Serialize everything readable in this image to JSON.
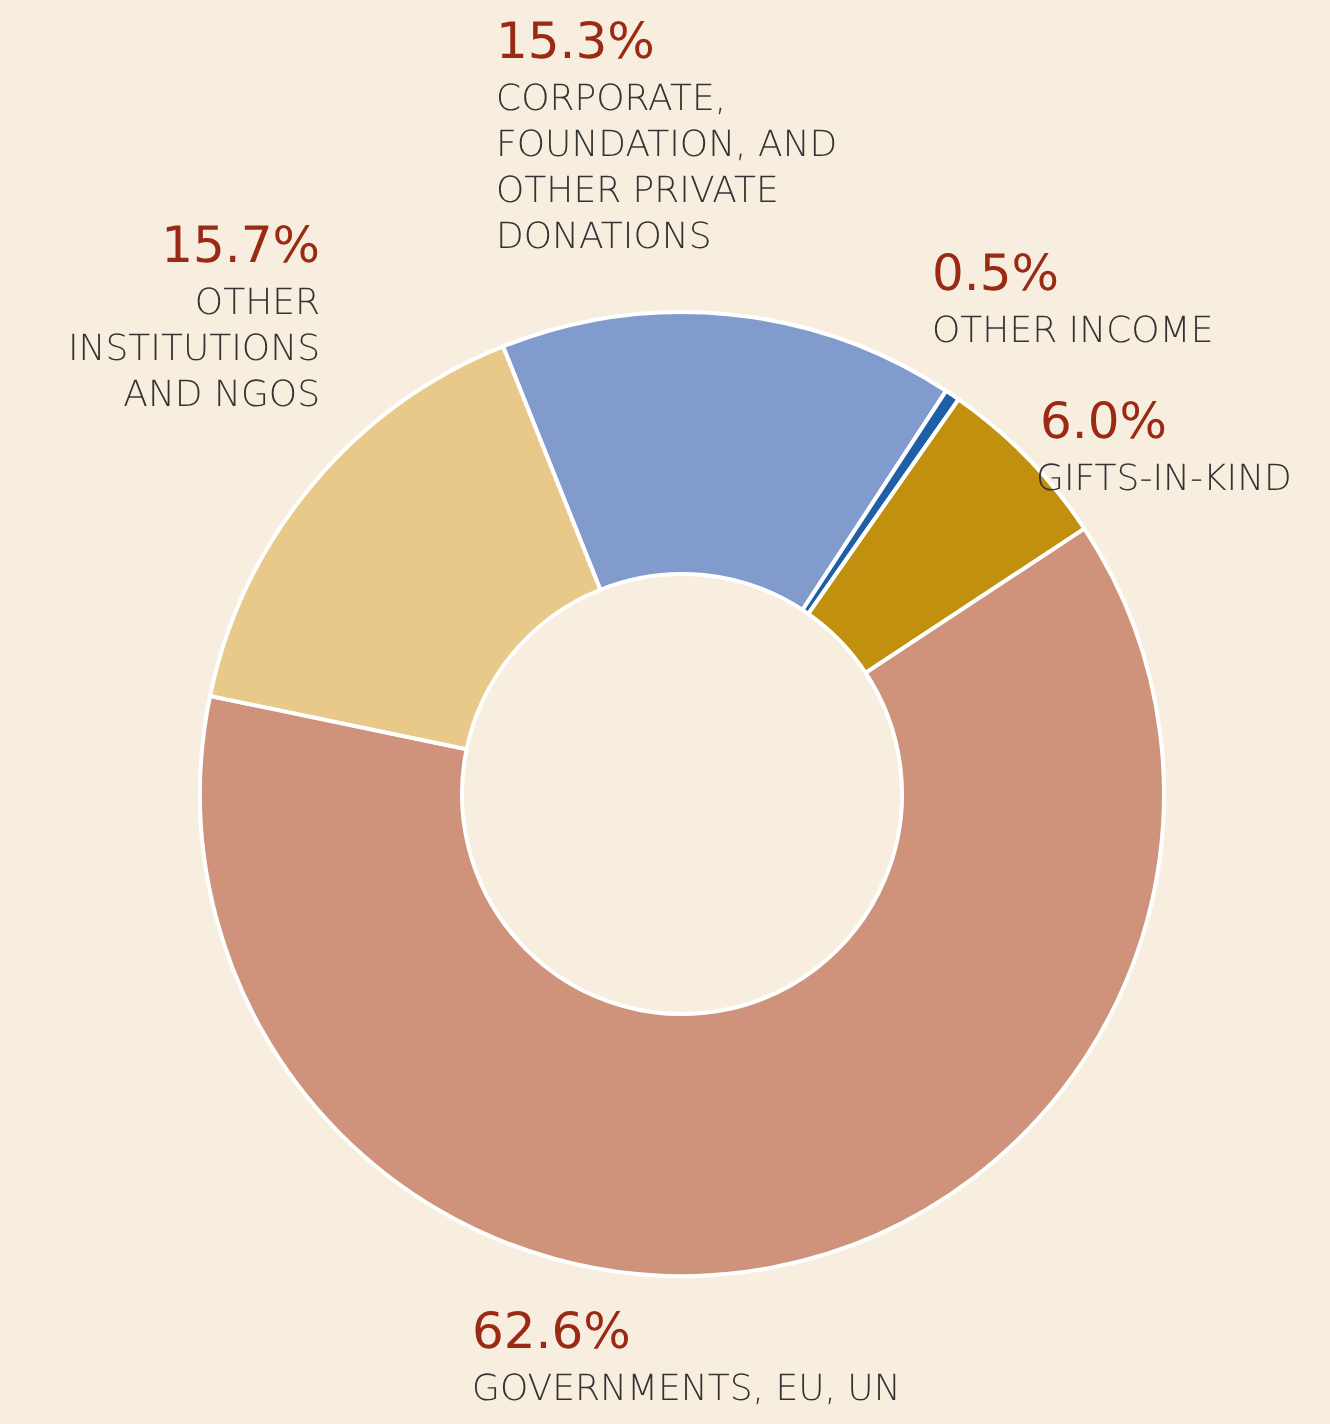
{
  "chart_data": {
    "type": "donut",
    "categories": [
      "CORPORATE, FOUNDATION, AND OTHER PRIVATE DONATIONS",
      "OTHER INCOME",
      "GIFTS-IN-KIND",
      "GOVERNMENTS, EU, UN",
      "OTHER INSTITUTIONS AND NGOS"
    ],
    "values": [
      15.3,
      0.5,
      6.0,
      62.6,
      15.7
    ],
    "colors": [
      "#819ccc",
      "#1f5fa8",
      "#c1900f",
      "#cf937b",
      "#e9c98a"
    ],
    "value_labels": [
      "15.3%",
      "0.5%",
      "6.0%",
      "62.6%",
      "15.7%"
    ],
    "legend": false
  }
}
